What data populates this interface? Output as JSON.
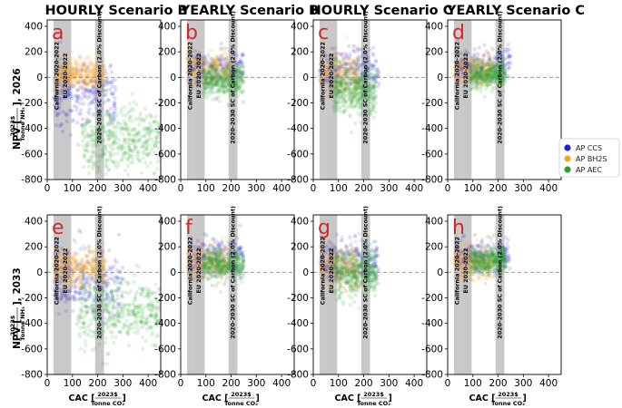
{
  "figure": {
    "column_titles": [
      "HOURLY Scenario B",
      "YEARLY Scenario B",
      "HOURLY Scenario C",
      "YEARLY Scenario C"
    ],
    "row_labels": {
      "row1": {
        "prefix": "NPV [",
        "frac_top": "2023$",
        "frac_bottom": "Tonne NH₃",
        "suffix": "], 2026"
      },
      "row2": {
        "prefix": "NPV [",
        "frac_top": "2023$",
        "frac_bottom": "Tonne NH₃",
        "suffix": "], 2033"
      }
    },
    "xlabel": {
      "prefix": "CAC [",
      "frac_top": "2023$",
      "frac_bottom": "Tonne CO₂",
      "suffix": "]"
    }
  },
  "chart_data": {
    "type": "scatter",
    "xlim": [
      0,
      450
    ],
    "ylim": [
      -800,
      450
    ],
    "x_ticks": [
      0,
      100,
      200,
      300,
      400
    ],
    "y_ticks": [
      400,
      200,
      0,
      -200,
      -400,
      -600,
      -800
    ],
    "reference_line_y": 0,
    "reference_bands": [
      {
        "label": "California 2020-2022",
        "x_range": [
          25,
          50
        ]
      },
      {
        "label": "EU 2020-2022",
        "x_range": [
          50,
          95
        ]
      },
      {
        "label": "2020-2030 SC of Carbon (2.0% Discount)",
        "x_range": [
          190,
          225
        ]
      }
    ],
    "legend": {
      "position": "right",
      "entries": [
        "AP CCS",
        "AP BH2S",
        "AP AEC"
      ]
    },
    "series_colors": {
      "AP CCS": "#1f1fe0",
      "AP BH2S": "#f5a623",
      "AP AEC": "#2ca02c"
    },
    "panels": [
      {
        "letter": "a",
        "row": 0,
        "col": 0,
        "year": "2026",
        "scenario": "HOURLY Scenario B",
        "clusters": [
          {
            "series": "AP CCS",
            "x_range": [
              25,
              270
            ],
            "y_center": -120,
            "y_spread": 220,
            "n": 260
          },
          {
            "series": "AP BH2S",
            "x_range": [
              30,
              230
            ],
            "y_center": 20,
            "y_spread": 110,
            "n": 380
          },
          {
            "series": "AP AEC",
            "x_range": [
              140,
              450
            ],
            "y_center": -480,
            "y_spread": 230,
            "n": 420
          }
        ]
      },
      {
        "letter": "b",
        "row": 0,
        "col": 1,
        "year": "2026",
        "scenario": "YEARLY Scenario B",
        "clusters": [
          {
            "series": "AP CCS",
            "x_range": [
              30,
              250
            ],
            "y_center": 80,
            "y_spread": 140,
            "n": 200
          },
          {
            "series": "AP BH2S",
            "x_range": [
              25,
              200
            ],
            "y_center": 70,
            "y_spread": 130,
            "n": 260
          },
          {
            "series": "AP AEC",
            "x_range": [
              90,
              250
            ],
            "y_center": -20,
            "y_spread": 120,
            "n": 380
          }
        ]
      },
      {
        "letter": "c",
        "row": 0,
        "col": 2,
        "year": "2026",
        "scenario": "HOURLY Scenario C",
        "clusters": [
          {
            "series": "AP CCS",
            "x_range": [
              25,
              260
            ],
            "y_center": 60,
            "y_spread": 160,
            "n": 220
          },
          {
            "series": "AP BH2S",
            "x_range": [
              25,
              180
            ],
            "y_center": 30,
            "y_spread": 150,
            "n": 260
          },
          {
            "series": "AP AEC",
            "x_range": [
              80,
              250
            ],
            "y_center": -100,
            "y_spread": 180,
            "n": 420
          }
        ]
      },
      {
        "letter": "d",
        "row": 0,
        "col": 3,
        "year": "2026",
        "scenario": "YEARLY Scenario C",
        "clusters": [
          {
            "series": "AP CCS",
            "x_range": [
              30,
              250
            ],
            "y_center": 100,
            "y_spread": 130,
            "n": 200
          },
          {
            "series": "AP BH2S",
            "x_range": [
              25,
              180
            ],
            "y_center": 60,
            "y_spread": 120,
            "n": 260
          },
          {
            "series": "AP AEC",
            "x_range": [
              90,
              230
            ],
            "y_center": 20,
            "y_spread": 100,
            "n": 380
          }
        ]
      },
      {
        "letter": "e",
        "row": 1,
        "col": 0,
        "year": "2033",
        "scenario": "HOURLY Scenario B",
        "clusters": [
          {
            "series": "AP CCS",
            "x_range": [
              25,
              300
            ],
            "y_center": -80,
            "y_spread": 220,
            "n": 260
          },
          {
            "series": "AP BH2S",
            "x_range": [
              25,
              230
            ],
            "y_center": 40,
            "y_spread": 140,
            "n": 380
          },
          {
            "series": "AP AEC",
            "x_range": [
              120,
              450
            ],
            "y_center": -300,
            "y_spread": 250,
            "n": 420
          }
        ]
      },
      {
        "letter": "f",
        "row": 1,
        "col": 1,
        "year": "2033",
        "scenario": "YEARLY Scenario B",
        "clusters": [
          {
            "series": "AP CCS",
            "x_range": [
              30,
              250
            ],
            "y_center": 120,
            "y_spread": 140,
            "n": 200
          },
          {
            "series": "AP BH2S",
            "x_range": [
              25,
              190
            ],
            "y_center": 80,
            "y_spread": 130,
            "n": 260
          },
          {
            "series": "AP AEC",
            "x_range": [
              90,
              250
            ],
            "y_center": 60,
            "y_spread": 110,
            "n": 380
          }
        ]
      },
      {
        "letter": "g",
        "row": 1,
        "col": 2,
        "year": "2033",
        "scenario": "HOURLY Scenario C",
        "clusters": [
          {
            "series": "AP CCS",
            "x_range": [
              25,
              260
            ],
            "y_center": 80,
            "y_spread": 160,
            "n": 220
          },
          {
            "series": "AP BH2S",
            "x_range": [
              25,
              180
            ],
            "y_center": 40,
            "y_spread": 150,
            "n": 260
          },
          {
            "series": "AP AEC",
            "x_range": [
              80,
              250
            ],
            "y_center": 0,
            "y_spread": 170,
            "n": 420
          }
        ]
      },
      {
        "letter": "h",
        "row": 1,
        "col": 3,
        "year": "2033",
        "scenario": "YEARLY Scenario C",
        "clusters": [
          {
            "series": "AP CCS",
            "x_range": [
              30,
              250
            ],
            "y_center": 130,
            "y_spread": 130,
            "n": 200
          },
          {
            "series": "AP BH2S",
            "x_range": [
              25,
              180
            ],
            "y_center": 80,
            "y_spread": 120,
            "n": 260
          },
          {
            "series": "AP AEC",
            "x_range": [
              90,
              230
            ],
            "y_center": 90,
            "y_spread": 100,
            "n": 380
          }
        ]
      }
    ]
  }
}
